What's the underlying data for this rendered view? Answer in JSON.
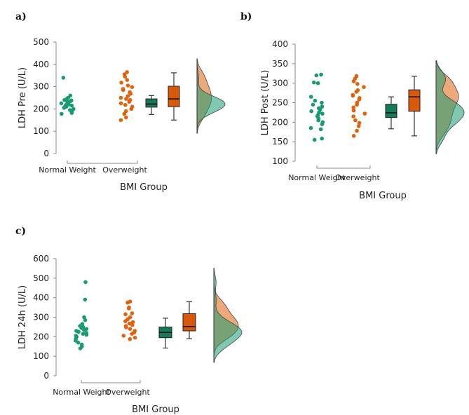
{
  "colors": {
    "normal": "#1a9a73",
    "over": "#e0620d",
    "box_normal": "#167a5a",
    "box_over": "#d9590a",
    "whisker": "#333333"
  },
  "chart_data": [
    {
      "type": "raincloud",
      "panel": "a)",
      "ylabel": "LDH Pre (U/L)",
      "xlabel": "BMI Group",
      "categories": [
        "Normal Weight",
        "Overweight"
      ],
      "yticks": [
        0,
        100,
        200,
        300,
        400,
        500
      ],
      "ylim": [
        0,
        500
      ],
      "series": [
        {
          "name": "Normal Weight",
          "points": [
            340,
            260,
            250,
            245,
            240,
            238,
            235,
            232,
            230,
            228,
            225,
            222,
            220,
            218,
            215,
            212,
            210,
            205,
            200,
            195,
            190,
            182,
            178
          ],
          "box": {
            "min": 175,
            "q1": 208,
            "median": 222,
            "q3": 245,
            "max": 260
          }
        },
        {
          "name": "Overweight",
          "points": [
            365,
            355,
            345,
            330,
            318,
            305,
            298,
            290,
            285,
            275,
            268,
            258,
            250,
            245,
            240,
            232,
            225,
            218,
            210,
            200,
            190,
            178,
            162,
            150
          ],
          "box": {
            "min": 150,
            "q1": 210,
            "median": 245,
            "q3": 302,
            "max": 362
          }
        }
      ]
    },
    {
      "type": "raincloud",
      "panel": "b)",
      "ylabel": "LDH Post (U/L)",
      "xlabel": "BMI Group",
      "categories": [
        "Normal Weight",
        "Overweight"
      ],
      "yticks": [
        100,
        150,
        200,
        250,
        300,
        350,
        400
      ],
      "ylim": [
        100,
        400
      ],
      "series": [
        {
          "name": "Normal Weight",
          "points": [
            322,
            320,
            302,
            300,
            265,
            255,
            250,
            245,
            240,
            236,
            232,
            228,
            225,
            222,
            218,
            215,
            210,
            205,
            200,
            195,
            185,
            182,
            158,
            155
          ],
          "box": {
            "min": 183,
            "q1": 212,
            "median": 224,
            "q3": 246,
            "max": 265
          }
        },
        {
          "name": "Overweight",
          "points": [
            318,
            312,
            305,
            298,
            290,
            282,
            278,
            270,
            268,
            262,
            258,
            250,
            245,
            238,
            230,
            222,
            215,
            205,
            198,
            190,
            178,
            165
          ],
          "box": {
            "min": 165,
            "q1": 228,
            "median": 265,
            "q3": 283,
            "max": 318
          }
        }
      ]
    },
    {
      "type": "raincloud",
      "panel": "c)",
      "ylabel": "LDH 24h (U/L)",
      "xlabel": "BMI Group",
      "categories": [
        "Normal Weight",
        "Overweight"
      ],
      "yticks": [
        0,
        100,
        200,
        300,
        400,
        500,
        600
      ],
      "ylim": [
        0,
        600
      ],
      "series": [
        {
          "name": "Normal Weight",
          "points": [
            480,
            390,
            300,
            285,
            265,
            255,
            250,
            245,
            240,
            235,
            230,
            225,
            220,
            215,
            210,
            205,
            200,
            190,
            180,
            170,
            160,
            150,
            140
          ],
          "box": {
            "min": 142,
            "q1": 195,
            "median": 222,
            "q3": 250,
            "max": 295
          }
        },
        {
          "name": "Overweight",
          "points": [
            380,
            375,
            350,
            345,
            320,
            315,
            300,
            290,
            280,
            275,
            268,
            260,
            255,
            248,
            240,
            230,
            222,
            215,
            205,
            195,
            188
          ],
          "box": {
            "min": 190,
            "q1": 230,
            "median": 252,
            "q3": 318,
            "max": 380
          }
        }
      ]
    }
  ]
}
